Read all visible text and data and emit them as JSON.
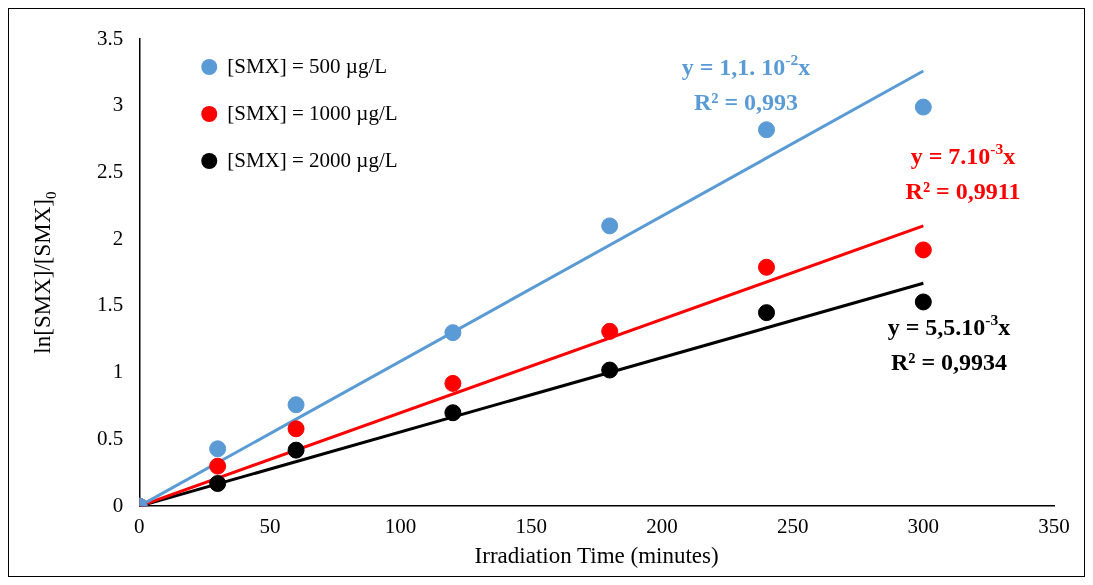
{
  "chart_data": {
    "type": "scatter",
    "xlabel": "Irradiation Time (minutes)",
    "ylabel": "ln[SMX]/[SMX]$_{0}$",
    "xlim": [
      0,
      350
    ],
    "xticks": [
      0,
      50,
      100,
      150,
      200,
      250,
      300,
      350
    ],
    "ylim": [
      0,
      3.5
    ],
    "yticks": [
      0,
      0.5,
      1,
      1.5,
      2,
      2.5,
      3,
      3.5
    ],
    "grid": false,
    "legend": "top left",
    "marker": "circle",
    "series": [
      {
        "name": "[SMX] = 500 µg/L",
        "color": "#5b9bd5",
        "x": [
          0,
          30,
          60,
          120,
          180,
          240,
          300
        ],
        "values": [
          0,
          0.43,
          0.76,
          1.3,
          2.1,
          2.82,
          2.99
        ]
      },
      {
        "name": "[SMX] = 1000 µg/L",
        "color": "#ff0000",
        "x": [
          0,
          30,
          60,
          120,
          180,
          240,
          300
        ],
        "values": [
          0,
          0.3,
          0.58,
          0.92,
          1.31,
          1.79,
          1.92
        ]
      },
      {
        "name": "[SMX] = 2000 µg/L",
        "color": "#000000",
        "x": [
          0,
          30,
          60,
          120,
          180,
          240,
          300
        ],
        "values": [
          0,
          0.17,
          0.42,
          0.7,
          1.02,
          1.45,
          1.53
        ]
      },
      {
        "type": "line",
        "color": "#5b9bd5",
        "marker": "none",
        "x": [
          0,
          300
        ],
        "values": [
          0,
          3.26
        ]
      },
      {
        "type": "line",
        "color": "#ff0000",
        "marker": "none",
        "x": [
          0,
          300
        ],
        "values": [
          0,
          2.1
        ]
      },
      {
        "type": "line",
        "color": "#000000",
        "marker": "none",
        "x": [
          0,
          300
        ],
        "values": [
          0,
          1.67
        ]
      }
    ],
    "annotations": [
      "y = 1,1. 10$^{-2}$x",
      "R² = 0,993",
      "y = 7.10$^{-3}$x",
      "R² = 0,9911",
      "y = 5,5.10$^{-3}$x",
      "R² = 0,9934"
    ]
  }
}
